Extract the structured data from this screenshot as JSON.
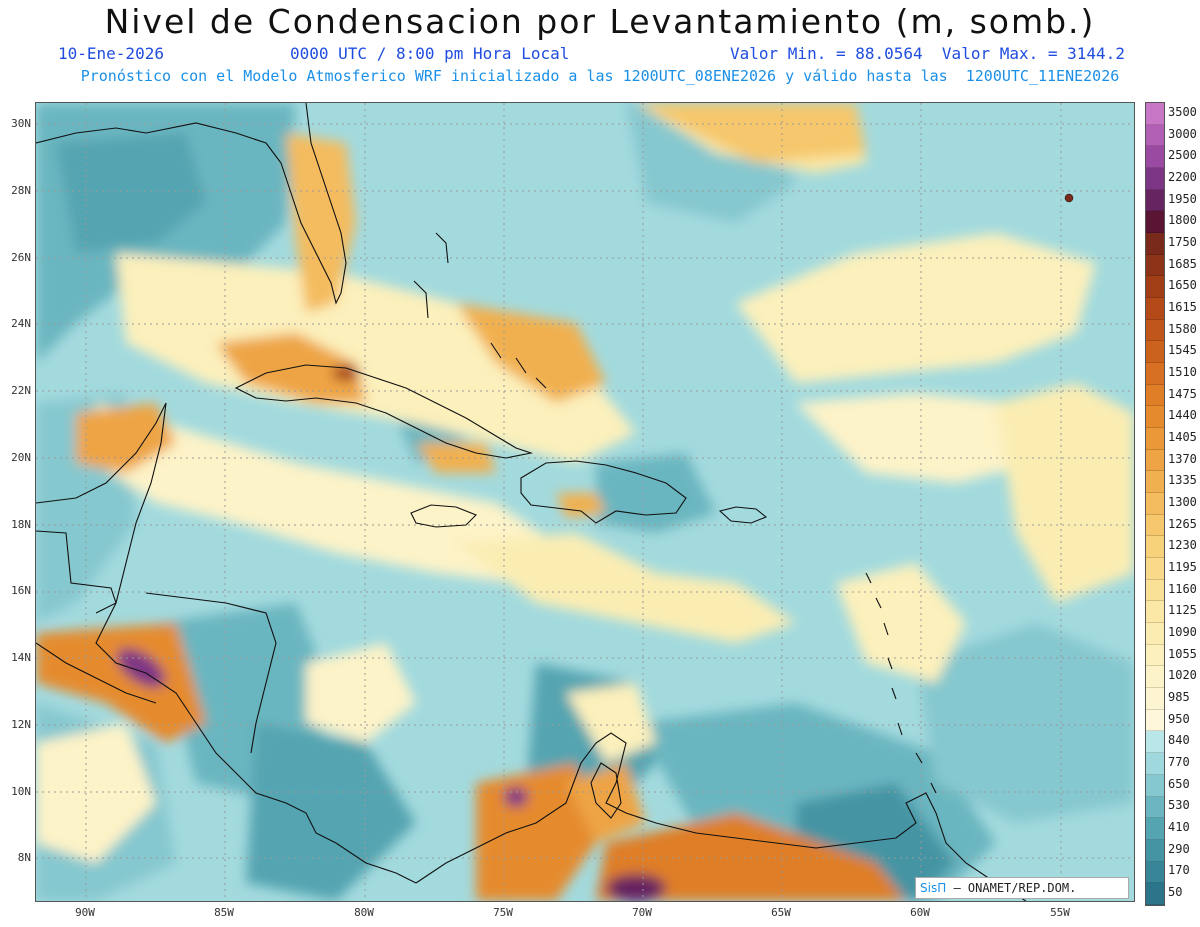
{
  "title": "Nivel de Condensacion por Levantamiento (m, somb.)",
  "date": "10-Ene-2026",
  "time": "0000 UTC / 8:00 pm Hora Local",
  "minmax": "Valor Min. = 88.0564  Valor Max. = 3144.2",
  "description": "Pronóstico con el Modelo Atmosferico WRF inicializado a las 1200UTC_08ENE2026 y válido hasta las  1200UTC_11ENE2026",
  "credit": {
    "logo": "SisΠ",
    "text": "– ONAMET/REP.DOM."
  },
  "y_ticks": [
    "30N",
    "28N",
    "26N",
    "24N",
    "22N",
    "20N",
    "18N",
    "16N",
    "14N",
    "12N",
    "10N",
    "8N"
  ],
  "x_ticks": [
    "90W",
    "85W",
    "80W",
    "75W",
    "70W",
    "65W",
    "60W",
    "55W"
  ],
  "legend_labels": [
    "3500",
    "3000",
    "2500",
    "2200",
    "1950",
    "1800",
    "1750",
    "1685",
    "1650",
    "1615",
    "1580",
    "1545",
    "1510",
    "1475",
    "1440",
    "1405",
    "1370",
    "1335",
    "1300",
    "1265",
    "1230",
    "1195",
    "1160",
    "1125",
    "1090",
    "1055",
    "1020",
    "985",
    "950",
    "840",
    "770",
    "650",
    "530",
    "410",
    "290",
    "170",
    "50"
  ],
  "legend_colors": [
    "#c877c7",
    "#b25fb6",
    "#9a4aa0",
    "#7d3585",
    "#662460",
    "#5a1535",
    "#7a2a1b",
    "#8d3317",
    "#a13e16",
    "#b34a18",
    "#c0561a",
    "#cc631d",
    "#d77022",
    "#df7e27",
    "#e58b2e",
    "#ea9838",
    "#eea444",
    "#f1b050",
    "#f4bc5e",
    "#f6c76c",
    "#f8d17b",
    "#f9d98a",
    "#fae198",
    "#fbe8a6",
    "#fbedb2",
    "#fcf0bc",
    "#fdf3c8",
    "#fdf5d2",
    "#fef7dc",
    "#b9e6e8",
    "#a0d9dd",
    "#86c8cf",
    "#6bb6c0",
    "#55a4b1",
    "#4494a4",
    "#378597",
    "#2c7489"
  ],
  "map": {
    "variable": "LCL",
    "units": "m",
    "region": "Caribbean",
    "shading": "filled-contours"
  }
}
